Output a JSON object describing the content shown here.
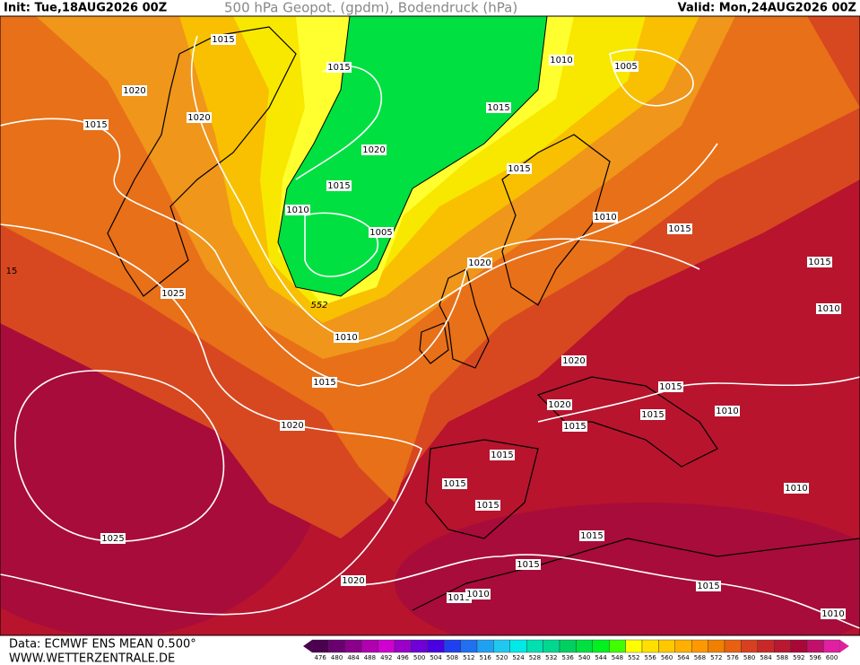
{
  "header": {
    "init": "Init: Tue,18AUG2026 00Z",
    "title": "500 hPa Geopot. (gpdm), Bodendruck (hPa)",
    "valid": "Valid: Mon,24AUG2026 00Z"
  },
  "map": {
    "isobar_labels": [
      "1015",
      "1015",
      "1020",
      "1020",
      "1015",
      "1020",
      "1015",
      "1010",
      "1005",
      "1015",
      "1010",
      "1005",
      "1015",
      "1010",
      "1015",
      "1020",
      "1025",
      "552",
      "1010",
      "1015",
      "1020",
      "1020",
      "1020",
      "1015",
      "1015",
      "1010",
      "1015",
      "1015",
      "1015",
      "1015",
      "1015",
      "1010",
      "1025",
      "1015",
      "1015",
      "1020",
      "1015",
      "1010",
      "1015",
      "1010",
      "1010",
      "15"
    ]
  },
  "footer": {
    "data_source": "Data: ECMWF ENS MEAN 0.500°",
    "website": "WWW.WETTERZENTRALE.DE",
    "scale_labels": [
      476,
      480,
      484,
      488,
      492,
      496,
      500,
      504,
      508,
      512,
      516,
      520,
      524,
      528,
      532,
      536,
      540,
      544,
      548,
      552,
      556,
      560,
      564,
      568,
      572,
      576,
      580,
      584,
      588,
      592,
      596,
      600
    ]
  }
}
